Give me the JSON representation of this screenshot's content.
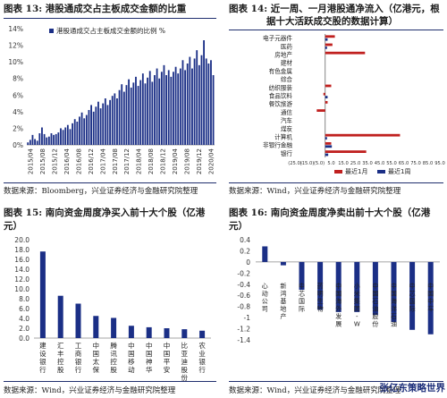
{
  "colors": {
    "navy": "#1b2f86",
    "red": "#c0201f",
    "rule": "#1f2e6e"
  },
  "p13": {
    "title": "图表 13: 港股通成交占主板成交金额的比重",
    "source": "数据来源：Bloomberg，兴业证券经济与金融研究院整理",
    "legend": "港股通成交占主板成交金额的比例 %",
    "chart_data": {
      "type": "bar",
      "x_labels": [
        "2015/04",
        "2015/08",
        "2015/12",
        "2016/04",
        "2016/08",
        "2016/12",
        "2017/04",
        "2017/08",
        "2017/12",
        "2018/04",
        "2018/08",
        "2018/12",
        "2019/04",
        "2019/08",
        "2019/12",
        "2020/04"
      ],
      "yticks": [
        "0%",
        "2%",
        "4%",
        "6%",
        "8%",
        "10%",
        "12%",
        "14%"
      ],
      "ylim": [
        0,
        14
      ],
      "series": [
        {
          "name": "港股通成交占主板成交金额的比例 %",
          "values": [
            0.3,
            0.6,
            1.2,
            0.7,
            0.5,
            1.4,
            2.1,
            1.3,
            0.9,
            1.0,
            1.4,
            1.2,
            1.3,
            1.5,
            2.0,
            1.8,
            2.1,
            2.4,
            1.9,
            2.6,
            3.1,
            2.8,
            3.4,
            3.9,
            3.2,
            3.6,
            4.2,
            4.8,
            4.0,
            4.6,
            5.2,
            4.4,
            5.0,
            5.6,
            4.8,
            5.4,
            5.9,
            6.2,
            5.6,
            6.6,
            7.3,
            6.4,
            7.2,
            7.9,
            6.9,
            7.5,
            8.2,
            7.1,
            7.8,
            8.6,
            7.4,
            8.1,
            8.9,
            7.6,
            8.4,
            9.2,
            8.0,
            8.8,
            9.6,
            8.4,
            9.0,
            8.2,
            8.8,
            9.4,
            8.6,
            9.2,
            10.2,
            9.0,
            9.8,
            10.6,
            9.2,
            10.4,
            11.4,
            9.6,
            10.8,
            12.6,
            10.4,
            9.8,
            10.2,
            8.4
          ]
        }
      ]
    }
  },
  "p14": {
    "title_l1": "图表 14: 近一周、一月港股通净流入（亿港元，根",
    "title_l2": "据十大活跃成交股的数据计算）",
    "source": "数据来源：Wind，兴业证券经济与金融研究院整理",
    "chart_data": {
      "type": "bar",
      "orientation": "horizontal",
      "categories": [
        "电子元器件",
        "医药",
        "房地产",
        "建材",
        "有色金属",
        "综合",
        "纺织服装",
        "食品饮料",
        "餐饮旅游",
        "通信",
        "汽车",
        "煤炭",
        "计算机",
        "非银行金融",
        "银行"
      ],
      "xticks": [
        "(25.0)",
        "(15.0)",
        "(5.0)",
        "5.0",
        "15.0",
        "25.0",
        "35.0",
        "45.0",
        "55.0",
        "65.0",
        "75.0",
        "85.0",
        "95.0"
      ],
      "xlim": [
        -25,
        95
      ],
      "series": [
        {
          "name": "最近1月",
          "values": [
            8.0,
            6.0,
            33.0,
            0,
            0,
            0,
            5.0,
            -1.5,
            2.0,
            -7.0,
            0,
            0,
            62.0,
            5.0,
            34.0
          ]
        },
        {
          "name": "最近1周",
          "values": [
            2.0,
            1.5,
            0,
            0,
            0,
            0,
            0,
            2.0,
            0,
            0,
            0,
            0,
            1.5,
            5.5,
            2.5
          ]
        }
      ],
      "legend": [
        "最近1月",
        "最近1周"
      ]
    }
  },
  "p15": {
    "title_l1": "图表 15: 南向资金周度净买入前十大个股（亿港",
    "title_l2": "元）",
    "source": "数据来源：Wind，兴业证券经济与金融研究院整理",
    "chart_data": {
      "type": "bar",
      "categories": [
        "建设银行",
        "汇丰控股",
        "工商银行",
        "中国太保",
        "腾讯控股",
        "中国移动",
        "中国神华",
        "中国平安",
        "比亚迪股份",
        "农业银行"
      ],
      "values": [
        17.6,
        8.6,
        7.0,
        4.5,
        4.1,
        2.5,
        2.2,
        2.0,
        1.8,
        1.5
      ],
      "yticks": [
        "0.0",
        "2.0",
        "4.0",
        "6.0",
        "8.0",
        "10.0",
        "12.0",
        "14.0",
        "16.0",
        "18.0",
        "20.0"
      ],
      "ylim": [
        0,
        20
      ]
    }
  },
  "p16": {
    "title": "图表 16: 南向资金周度净卖出前十大个股（亿港",
    "title_l2": "元）",
    "source": "数据来源：Wind，兴业证券经济与金融研究院整理",
    "chart_data": {
      "type": "bar",
      "categories": [
        "心动公司",
        "新鸿基地产",
        "中芯国际",
        "药明生物",
        "中国海外发展",
        "小米集团-W",
        "中国石油股份",
        "中国海洋石油",
        "中芯国际",
        "中国中车"
      ],
      "values": [
        0.28,
        -0.06,
        -0.5,
        -0.86,
        -0.9,
        -0.9,
        -0.95,
        -1.08,
        -1.22,
        -1.3
      ],
      "yticks": [
        "0.4",
        "0.2",
        "0",
        "-0.2",
        "-0.4",
        "-0.6",
        "-0.8",
        "-1",
        "-1.2",
        "-1.4"
      ],
      "ylim": [
        -1.4,
        0.4
      ]
    }
  },
  "watermark": "张亿东策略世界"
}
